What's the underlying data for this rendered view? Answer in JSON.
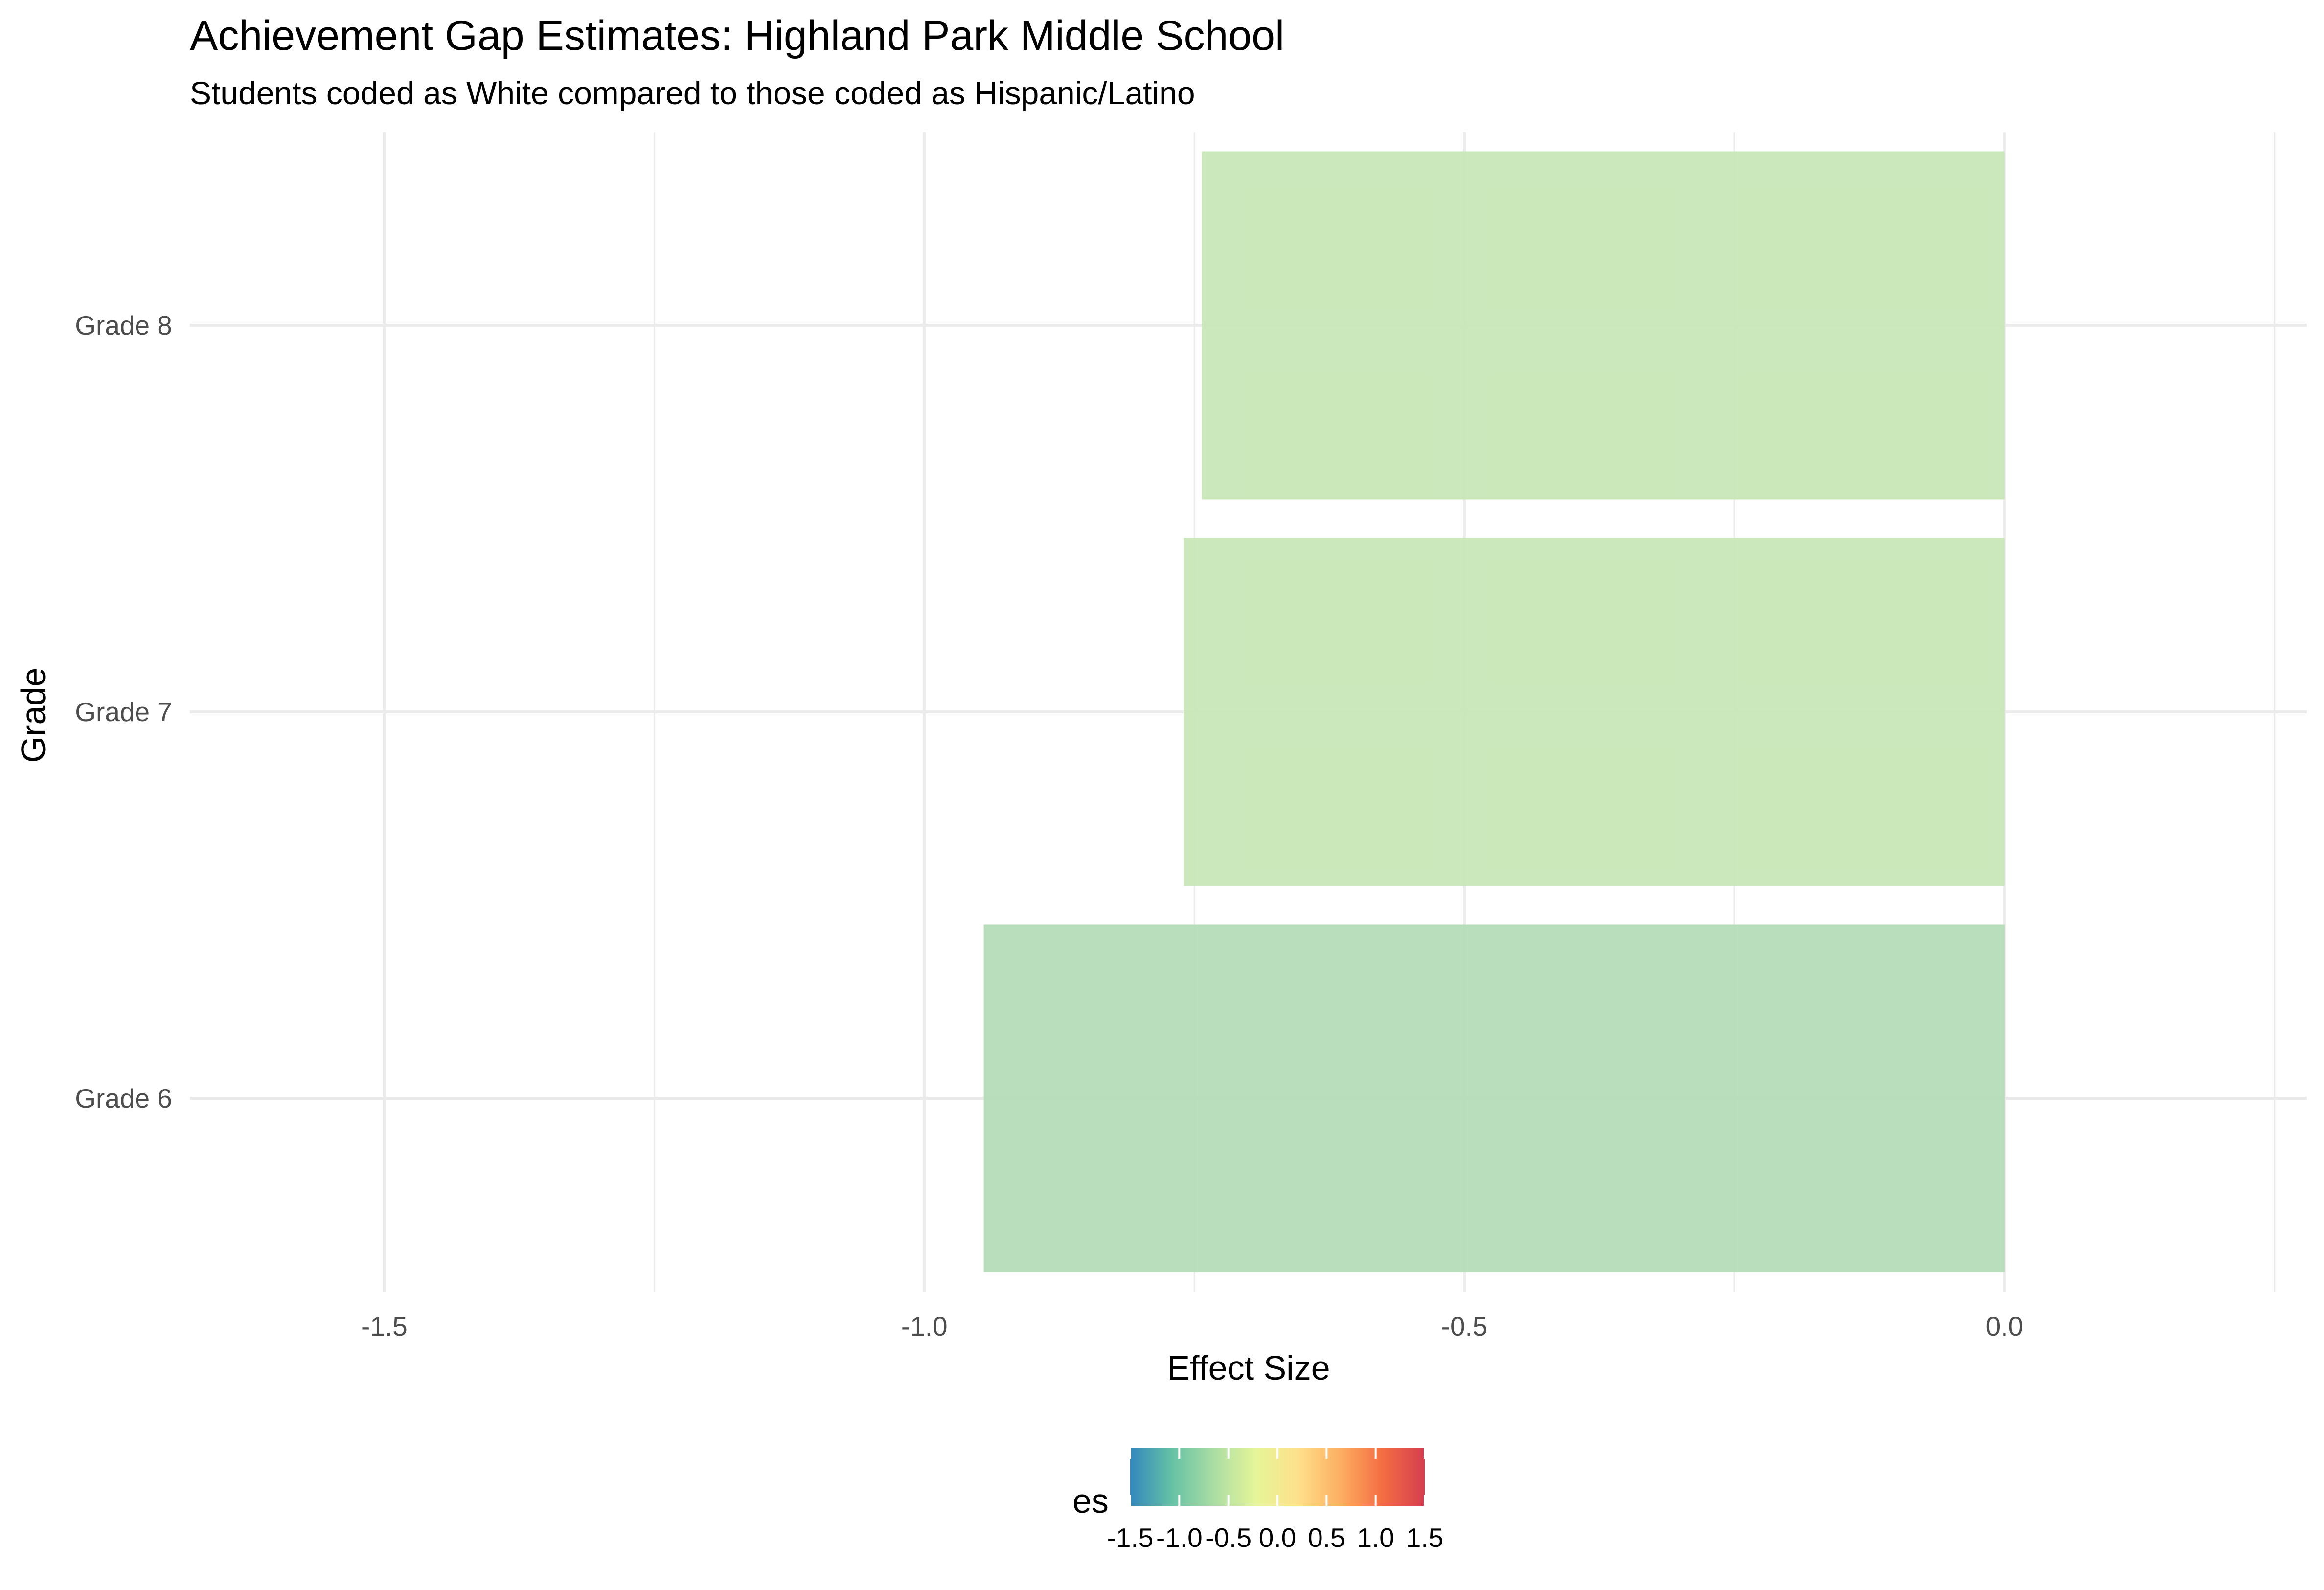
{
  "chart_data": {
    "type": "bar",
    "orientation": "horizontal",
    "title": "Achievement Gap Estimates: Highland Park Middle School",
    "subtitle": "Students coded as White compared to those coded as Hispanic/Latino",
    "xlabel": "Effect Size",
    "ylabel": "Grade",
    "categories": [
      "Grade 6",
      "Grade 7",
      "Grade 8"
    ],
    "values": [
      -0.945,
      -0.76,
      -0.743
    ],
    "xlim": [
      -1.68,
      0.28
    ],
    "x_ticks": [
      -1.5,
      -1.0,
      -0.5,
      0.0
    ],
    "x_tick_labels": [
      "-1.5",
      "-1.0",
      "-0.5",
      "0.0"
    ],
    "grid": true,
    "legend": {
      "title": "es",
      "placement": "bottom",
      "range": [
        -1.5,
        1.5
      ],
      "ticks": [
        -1.5,
        -1.0,
        -0.5,
        0.0,
        0.5,
        1.0,
        1.5
      ],
      "tick_labels": [
        "-1.5",
        "-1.0",
        "-0.5",
        "0.0",
        "0.5",
        "1.0",
        "1.5"
      ],
      "palette": [
        "#3288bd",
        "#66c2a5",
        "#abdda4",
        "#e6f598",
        "#fee08b",
        "#fdae61",
        "#f46d43",
        "#d53e4f"
      ]
    },
    "bar_colors": [
      "#b3dbb6",
      "#c6e6b5",
      "#c6e6b5"
    ]
  }
}
